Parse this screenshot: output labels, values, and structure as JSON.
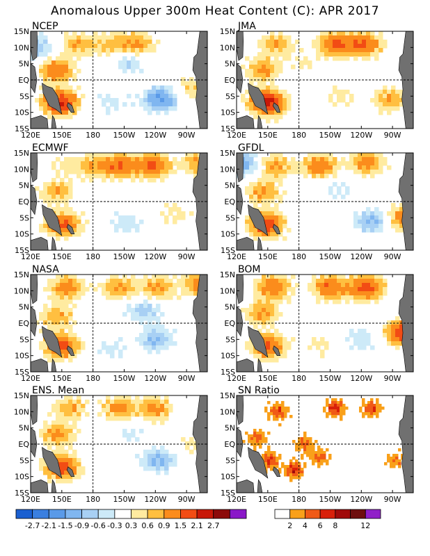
{
  "figure": {
    "title": "Anomalous Upper 300m Heat Content (C): APR 2017"
  },
  "chart_data": {
    "type": "heatmap",
    "title": "Anomalous Upper 300m Heat Content (C): APR 2017",
    "lon_ticks": [
      "120E",
      "150E",
      "180",
      "150W",
      "120W",
      "90W"
    ],
    "lat_ticks": [
      "15N",
      "10N",
      "5N",
      "EQ",
      "5S",
      "10S",
      "15S"
    ],
    "panels": [
      {
        "name": "NCEP",
        "blobs": [
          {
            "lon": 165,
            "lat": 11,
            "v": 0.9
          },
          {
            "lon": 222,
            "lat": 11,
            "v": 1.0
          },
          {
            "lon": 197,
            "lat": 11,
            "v": 0.7
          },
          {
            "lon": 145,
            "lat": 3,
            "v": 1.4
          },
          {
            "lon": 148,
            "lat": -7,
            "v": 2.2
          },
          {
            "lon": 245,
            "lat": -6,
            "v": -1.5
          },
          {
            "lon": 215,
            "lat": 5,
            "v": -0.6
          },
          {
            "lon": 198,
            "lat": -7,
            "v": -0.4
          },
          {
            "lon": 126,
            "lat": 10,
            "v": -0.9
          },
          {
            "lon": 275,
            "lat": -3,
            "v": 0.6
          }
        ]
      },
      {
        "name": "JMA",
        "blobs": [
          {
            "lon": 158,
            "lat": 11,
            "v": 0.9
          },
          {
            "lon": 215,
            "lat": 11,
            "v": 1.6
          },
          {
            "lon": 243,
            "lat": 11,
            "v": 1.5
          },
          {
            "lon": 145,
            "lat": 3,
            "v": 1.0
          },
          {
            "lon": 150,
            "lat": -7,
            "v": 2.4
          },
          {
            "lon": 268,
            "lat": -6,
            "v": 0.9
          },
          {
            "lon": 220,
            "lat": -5,
            "v": 0.4
          },
          {
            "lon": 185,
            "lat": 5,
            "v": 0.35
          }
        ]
      },
      {
        "name": "ECMWF",
        "blobs": [
          {
            "lon": 205,
            "lat": 11,
            "v": 1.5
          },
          {
            "lon": 238,
            "lat": 11,
            "v": 1.6
          },
          {
            "lon": 178,
            "lat": 11,
            "v": 0.8
          },
          {
            "lon": 282,
            "lat": 12,
            "v": 1.0
          },
          {
            "lon": 145,
            "lat": 3,
            "v": 0.9
          },
          {
            "lon": 150,
            "lat": -7,
            "v": 1.7
          },
          {
            "lon": 212,
            "lat": -7,
            "v": -0.5
          },
          {
            "lon": 260,
            "lat": -4,
            "v": 0.4
          },
          {
            "lon": 150,
            "lat": 11,
            "v": 0.4
          }
        ]
      },
      {
        "name": "GFDL",
        "blobs": [
          {
            "lon": 158,
            "lat": 11,
            "v": 1.0
          },
          {
            "lon": 200,
            "lat": 11,
            "v": 1.3
          },
          {
            "lon": 245,
            "lat": 12,
            "v": 1.2
          },
          {
            "lon": 145,
            "lat": 3,
            "v": 1.0
          },
          {
            "lon": 148,
            "lat": -7,
            "v": 2.0
          },
          {
            "lon": 250,
            "lat": -6,
            "v": -1.0
          },
          {
            "lon": 282,
            "lat": -5,
            "v": 1.4
          },
          {
            "lon": 218,
            "lat": 4,
            "v": -0.4
          },
          {
            "lon": 125,
            "lat": 12,
            "v": -1.2
          }
        ]
      },
      {
        "name": "NASA",
        "blobs": [
          {
            "lon": 155,
            "lat": 11,
            "v": 1.2
          },
          {
            "lon": 205,
            "lat": 11,
            "v": 1.0
          },
          {
            "lon": 242,
            "lat": 11,
            "v": 1.0
          },
          {
            "lon": 283,
            "lat": 12,
            "v": 1.2
          },
          {
            "lon": 145,
            "lat": 2,
            "v": 0.9
          },
          {
            "lon": 150,
            "lat": -7,
            "v": 1.8
          },
          {
            "lon": 230,
            "lat": 4,
            "v": -0.8
          },
          {
            "lon": 240,
            "lat": -5,
            "v": -1.0
          },
          {
            "lon": 198,
            "lat": -8,
            "v": -0.4
          }
        ]
      },
      {
        "name": "BOM",
        "blobs": [
          {
            "lon": 155,
            "lat": 11,
            "v": 1.4
          },
          {
            "lon": 210,
            "lat": 11,
            "v": 1.5
          },
          {
            "lon": 245,
            "lat": 11,
            "v": 1.8
          },
          {
            "lon": 145,
            "lat": 3,
            "v": 1.0
          },
          {
            "lon": 150,
            "lat": -7,
            "v": 1.6
          },
          {
            "lon": 280,
            "lat": -3,
            "v": 1.9
          },
          {
            "lon": 240,
            "lat": -5,
            "v": -0.5
          },
          {
            "lon": 200,
            "lat": -7,
            "v": 0.4
          }
        ]
      },
      {
        "name": "ENS. Mean",
        "blobs": [
          {
            "lon": 158,
            "lat": 11,
            "v": 0.9
          },
          {
            "lon": 205,
            "lat": 11,
            "v": 1.1
          },
          {
            "lon": 240,
            "lat": 11,
            "v": 1.1
          },
          {
            "lon": 145,
            "lat": 3,
            "v": 1.0
          },
          {
            "lon": 150,
            "lat": -7,
            "v": 1.9
          },
          {
            "lon": 243,
            "lat": -5,
            "v": -1.0
          },
          {
            "lon": 215,
            "lat": 4,
            "v": -0.4
          },
          {
            "lon": 280,
            "lat": 0,
            "v": 0.5
          }
        ]
      },
      {
        "name": "SN Ratio",
        "blobs": [
          {
            "lon": 152,
            "lat": -5,
            "v": 6
          },
          {
            "lon": 175,
            "lat": -8,
            "v": 7
          },
          {
            "lon": 200,
            "lat": -4,
            "v": 5
          },
          {
            "lon": 160,
            "lat": 10,
            "v": 6
          },
          {
            "lon": 215,
            "lat": 11,
            "v": 7
          },
          {
            "lon": 250,
            "lat": 11,
            "v": 6
          },
          {
            "lon": 140,
            "lat": 2,
            "v": 5
          },
          {
            "lon": 272,
            "lat": -5,
            "v": 4
          },
          {
            "lon": 185,
            "lat": 0,
            "v": 5
          }
        ]
      }
    ],
    "colorbar_anomaly": {
      "labels": [
        "-2.7",
        "-2.1",
        "-1.5",
        "-0.9",
        "-0.6",
        "-0.3",
        "0.3",
        "0.6",
        "0.9",
        "1.5",
        "2.1",
        "2.7"
      ],
      "colors": [
        "#1a5fd0",
        "#3a7fe0",
        "#5a9ae8",
        "#80b6f0",
        "#a8d0f4",
        "#cdeaf8",
        "#ffffff",
        "#ffeba0",
        "#ffbf40",
        "#fb8c1c",
        "#f24c14",
        "#c81808",
        "#8c0a0a",
        "#8a18c8"
      ]
    },
    "colorbar_sn": {
      "labels": [
        "2",
        "4",
        "6",
        "8",
        "12"
      ],
      "colors": [
        "#ffffff",
        "#f9a01a",
        "#f05a16",
        "#d8200a",
        "#a00a0a",
        "#6e0e0e",
        "#9020c8"
      ]
    }
  }
}
